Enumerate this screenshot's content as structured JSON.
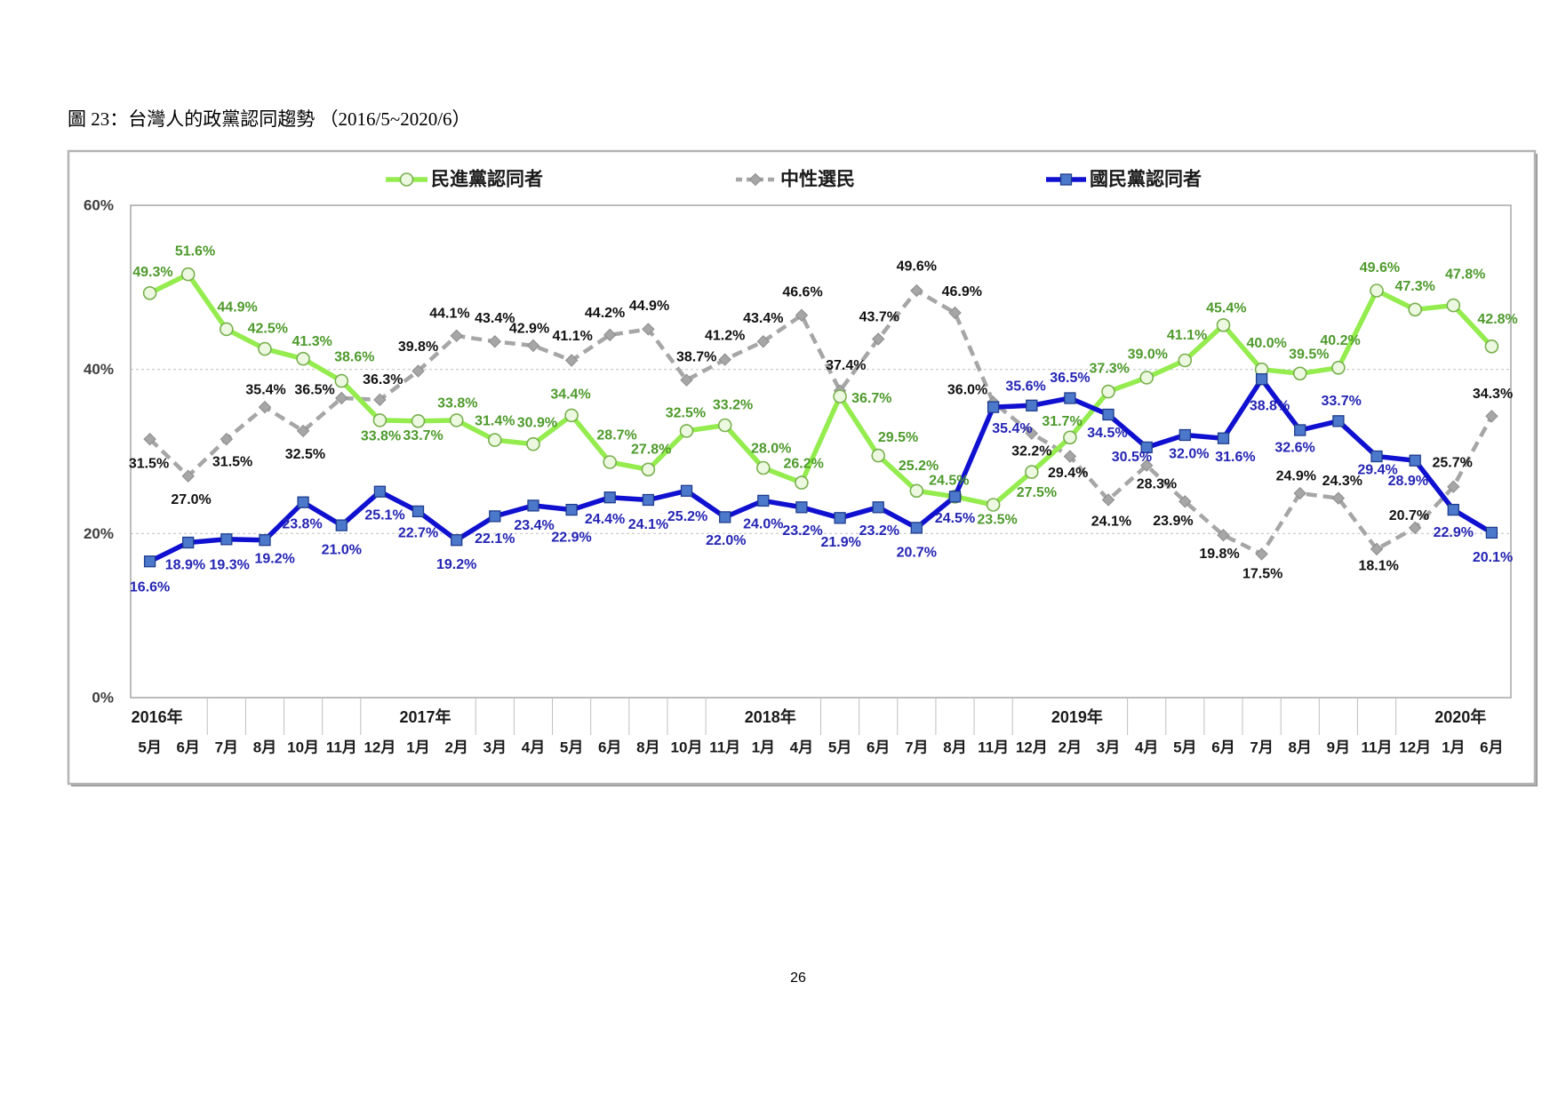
{
  "page": {
    "page_number": "26"
  },
  "chart_data": {
    "type": "line",
    "title": "圖 23：台灣人的政黨認同趨勢 （2016/5~2020/6）",
    "ylim": [
      0,
      60
    ],
    "y_ticks": [
      "0%",
      "20%",
      "40%",
      "60%"
    ],
    "grid": true,
    "legend_position": "top",
    "value_suffix": "%",
    "categories": [
      "5月",
      "6月",
      "7月",
      "8月",
      "10月",
      "11月",
      "12月",
      "1月",
      "2月",
      "3月",
      "4月",
      "5月",
      "6月",
      "8月",
      "10月",
      "11月",
      "1月",
      "4月",
      "5月",
      "6月",
      "7月",
      "8月",
      "11月",
      "12月",
      "2月",
      "3月",
      "4月",
      "5月",
      "6月",
      "7月",
      "8月",
      "9月",
      "11月",
      "12月",
      "1月",
      "6月"
    ],
    "year_labels": [
      {
        "text": "2016年",
        "category_index": 0
      },
      {
        "text": "2017年",
        "category_index": 7
      },
      {
        "text": "2018年",
        "category_index": 16
      },
      {
        "text": "2019年",
        "category_index": 24
      },
      {
        "text": "2020年",
        "category_index": 34
      }
    ],
    "series": [
      {
        "name": "民進黨認同者",
        "color": "#94EC4E",
        "marker": "circle",
        "marker_color": "#EDF8E0",
        "marker_stroke": "#78B04E",
        "label_color": "#4E9A2C",
        "line_style": "solid",
        "values": [
          49.3,
          51.6,
          44.9,
          42.5,
          41.3,
          38.6,
          33.8,
          33.7,
          33.8,
          31.4,
          30.9,
          34.4,
          28.7,
          27.8,
          32.5,
          33.2,
          28.0,
          26.2,
          36.7,
          29.5,
          25.2,
          24.5,
          23.5,
          27.5,
          31.7,
          37.3,
          39.0,
          41.1,
          45.4,
          40.0,
          39.5,
          40.2,
          49.6,
          47.3,
          47.8,
          42.8
        ]
      },
      {
        "name": "中性選民",
        "color": "#A6A6A6",
        "marker": "diamond",
        "marker_color": "#A6A6A6",
        "marker_stroke": "#8C8C8C",
        "label_color": "#111111",
        "line_style": "dashed",
        "values": [
          31.5,
          27.0,
          31.5,
          35.4,
          32.5,
          36.5,
          36.3,
          39.8,
          44.1,
          43.4,
          42.9,
          41.1,
          44.2,
          44.9,
          38.7,
          41.2,
          43.4,
          46.6,
          37.4,
          43.7,
          49.6,
          46.9,
          36.0,
          32.2,
          29.4,
          24.1,
          28.3,
          23.9,
          19.8,
          17.5,
          24.9,
          24.3,
          18.1,
          20.7,
          25.7,
          34.3
        ]
      },
      {
        "name": "國民黨認同者",
        "color": "#1010D0",
        "marker": "square",
        "marker_color": "#4C78CC",
        "marker_stroke": "#1E3C8C",
        "label_color": "#2424B4",
        "line_style": "solid",
        "values": [
          16.6,
          18.9,
          19.3,
          19.2,
          23.8,
          21.0,
          25.1,
          22.7,
          19.2,
          22.1,
          23.4,
          22.9,
          24.4,
          24.1,
          25.2,
          22.0,
          24.0,
          23.2,
          21.9,
          23.2,
          20.7,
          24.5,
          35.4,
          35.6,
          36.5,
          34.5,
          30.5,
          32.0,
          31.6,
          38.8,
          32.6,
          33.7,
          29.4,
          28.9,
          22.9,
          20.1
        ]
      }
    ]
  }
}
